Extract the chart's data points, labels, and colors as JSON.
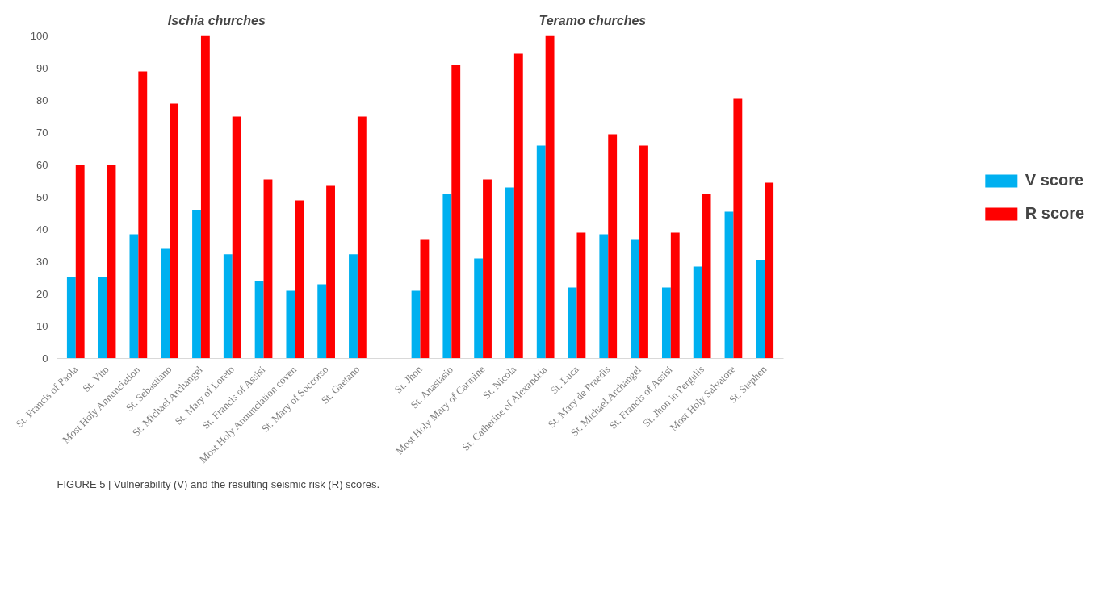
{
  "chart_data": {
    "type": "bar",
    "categories": [
      "St. Francis of Paola",
      "St. Vito",
      "Most Holy Annunciation",
      "St. Sebastiano",
      "St. Michael Archangel",
      "St. Mary of Loreto",
      "St. Francis of Assisi",
      "Most Holy Annunciation coven",
      "St. Mary of Soccorso",
      "St. Gaetano",
      null,
      "St. Jhon",
      "St. Anastasio",
      "Most Holy Mary of Carmine",
      "St. Nicola",
      "St. Catherine of Alexandria",
      "St. Luca",
      "St. Mary de Praedis",
      "St. Michael Archangel",
      "St. Francis of Assisi",
      "St. Jhon in Pergulis",
      "Most Holy Salvatore",
      "St. Stephen"
    ],
    "series": [
      {
        "name": "V score",
        "color": "#00b0f0",
        "values": [
          25.4,
          25.4,
          38.5,
          34,
          46,
          32.3,
          24,
          21,
          23,
          32.3,
          null,
          21,
          51,
          31,
          53,
          66,
          22,
          38.5,
          37,
          22,
          28.5,
          45.5,
          30.5
        ]
      },
      {
        "name": "R score",
        "color": "#ff0000",
        "values": [
          60,
          60,
          89,
          79,
          100,
          75,
          55.5,
          49,
          53.5,
          75,
          null,
          37,
          91,
          55.5,
          94.5,
          100,
          39,
          69.5,
          66,
          39,
          51,
          80.5,
          54.5
        ]
      }
    ],
    "ylim": [
      0,
      100
    ],
    "yticks": [
      0,
      10,
      20,
      30,
      40,
      50,
      60,
      70,
      80,
      90,
      100
    ],
    "grid": false,
    "legend": "right",
    "annotations": [
      "Ischia churches",
      "Teramo churches",
      "FIGURE 5 | Vulnerability (V) and the resulting seismic risk (R) scores."
    ]
  }
}
